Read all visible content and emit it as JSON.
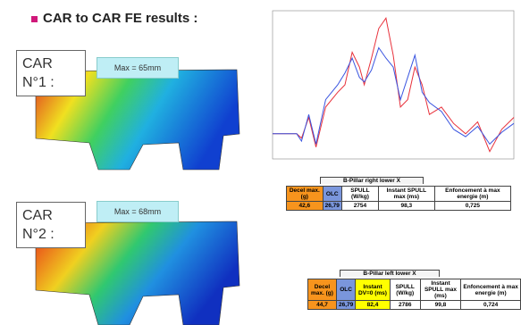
{
  "header": {
    "title": "CAR to CAR FE results :"
  },
  "panels": [
    {
      "label": "CAR N°1 :",
      "max_label": "Max = 65mm"
    },
    {
      "label": "CAR N°2 :",
      "max_label": "Max = 68mm"
    }
  ],
  "chart": {
    "type": "line",
    "x": [
      0,
      5,
      10,
      12,
      15,
      18,
      22,
      27,
      30,
      33,
      36,
      38,
      41,
      44,
      47,
      50,
      53,
      56,
      59,
      62,
      65,
      70,
      75,
      80,
      85,
      90,
      95,
      100
    ],
    "xlim": [
      0,
      100
    ],
    "ylim": [
      0,
      100
    ],
    "series": [
      {
        "color": "#e8323c",
        "values": [
          17,
          17,
          17,
          14,
          28,
          8,
          35,
          45,
          50,
          72,
          62,
          50,
          68,
          88,
          95,
          70,
          35,
          40,
          62,
          50,
          30,
          35,
          24,
          17,
          25,
          5,
          20,
          28
        ]
      },
      {
        "color": "#3a55e0",
        "values": [
          17,
          17,
          17,
          12,
          30,
          10,
          40,
          50,
          58,
          68,
          55,
          52,
          60,
          75,
          68,
          62,
          40,
          55,
          70,
          45,
          38,
          32,
          20,
          15,
          22,
          10,
          18,
          24
        ]
      }
    ]
  },
  "tables": [
    {
      "title": "B-Pillar right lower X",
      "headers": [
        "Decel max. (g)",
        "OLC",
        "SPULL (W/kg)",
        "Instant SPULL max (ms)",
        "Enfoncement à max energie (m)"
      ],
      "rows": [
        [
          "42,6",
          "26,79",
          "2754",
          "98,3",
          "0,725"
        ]
      ]
    },
    {
      "title": "B-Pillar left lower X",
      "headers": [
        "Decel max. (g)",
        "OLC",
        "Instant DV=0 (ms)",
        "SPULL (W/kg)",
        "Instant SPULL max (ms)",
        "Enfoncement à max energie (m)"
      ],
      "rows": [
        [
          "44,7",
          "26,79",
          "82,4",
          "2786",
          "99,8",
          "0,724"
        ]
      ]
    }
  ]
}
